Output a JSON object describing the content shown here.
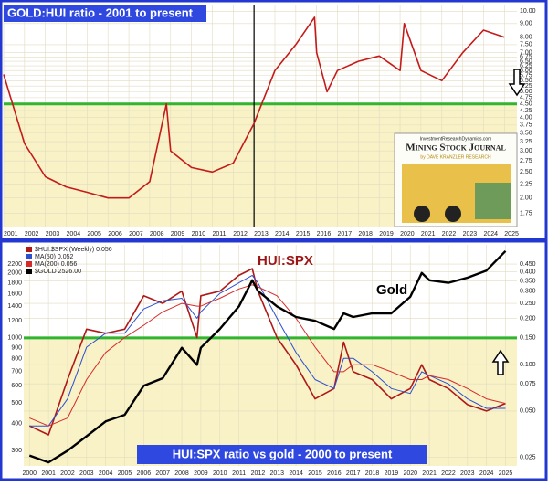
{
  "chart_data": [
    {
      "type": "line",
      "title": "GOLD:HUI ratio - 2001 to present",
      "log": true,
      "x": [
        2001,
        2002,
        2003,
        2004,
        2005,
        2006,
        2007,
        2008,
        2008.8,
        2009,
        2010,
        2011,
        2012,
        2013,
        2014,
        2015,
        2015.9,
        2016,
        2016.5,
        2017,
        2018,
        2019,
        2020,
        2020.2,
        2021,
        2022,
        2023,
        2024,
        2025
      ],
      "series": [
        {
          "color": "#c41a1a",
          "values": [
            5.8,
            3.2,
            2.4,
            2.2,
            2.1,
            2.0,
            2.0,
            2.3,
            4.5,
            3.0,
            2.6,
            2.5,
            2.7,
            3.8,
            6.0,
            7.5,
            9.5,
            7.0,
            5.0,
            6.0,
            6.5,
            6.8,
            6.0,
            9.0,
            6.0,
            5.5,
            7.0,
            8.5,
            8.0
          ]
        }
      ],
      "xlim": [
        2001,
        2025.6
      ],
      "xticks": [
        2001,
        2002,
        2003,
        2004,
        2005,
        2006,
        2007,
        2008,
        2009,
        2010,
        2011,
        2012,
        2013,
        2014,
        2015,
        2016,
        2017,
        2018,
        2019,
        2020,
        2021,
        2022,
        2023,
        2024,
        2025
      ],
      "ylim": [
        1.55,
        10.6
      ],
      "yticks": [
        1.75,
        {
          "value": 2,
          "label": "2.00"
        },
        2.25,
        {
          "value": 2.5,
          "label": "2.50"
        },
        2.75,
        {
          "value": 3,
          "label": "3.00"
        },
        3.25,
        {
          "value": 3.5,
          "label": "3.50"
        },
        3.75,
        {
          "value": 4,
          "label": "4.00"
        },
        4.25,
        {
          "value": 4.5,
          "label": "4.50"
        },
        4.75,
        {
          "value": 5,
          "label": "5.00"
        },
        5.25,
        {
          "value": 5.5,
          "label": "5.50"
        },
        5.75,
        {
          "value": 6,
          "label": "6.00"
        },
        6.25,
        {
          "value": 6.5,
          "label": "6.50"
        },
        6.75,
        {
          "value": 7,
          "label": "7.00"
        },
        {
          "value": 7.5,
          "label": "7.50"
        },
        {
          "value": 8,
          "label": "8.00"
        },
        {
          "value": 9,
          "label": "9.00"
        },
        {
          "value": 10,
          "label": "10.00"
        }
      ],
      "hline": 4.5,
      "hline_color": "#2fb52f",
      "vline": 2013
    },
    {
      "type": "line",
      "title": "HUI:SPX ratio vs gold - 2000 to present",
      "log": true,
      "x": [
        2000,
        2001,
        2002,
        2003,
        2004,
        2005,
        2006,
        2007,
        2008,
        2008.8,
        2009,
        2010,
        2011,
        2011.7,
        2012,
        2013,
        2014,
        2015,
        2016,
        2016.5,
        2017,
        2018,
        2019,
        2020,
        2020.6,
        2021,
        2022,
        2023,
        2024,
        2025
      ],
      "series": [
        {
          "name": "$HUI:$SPX (Weekly) 0.056",
          "color": "#b01818",
          "axis": "y2",
          "values": [
            0.04,
            0.035,
            0.08,
            0.17,
            0.16,
            0.17,
            0.28,
            0.25,
            0.3,
            0.15,
            0.28,
            0.3,
            0.38,
            0.42,
            0.3,
            0.15,
            0.1,
            0.06,
            0.07,
            0.14,
            0.09,
            0.08,
            0.06,
            0.07,
            0.1,
            0.08,
            0.07,
            0.055,
            0.05,
            0.056
          ]
        },
        {
          "name": "MA(50) 0.052",
          "color": "#2a4fd0",
          "axis": "y2",
          "values": [
            0.04,
            0.04,
            0.06,
            0.13,
            0.16,
            0.16,
            0.23,
            0.26,
            0.27,
            0.2,
            0.22,
            0.29,
            0.34,
            0.38,
            0.34,
            0.2,
            0.12,
            0.08,
            0.07,
            0.11,
            0.11,
            0.09,
            0.07,
            0.065,
            0.09,
            0.085,
            0.075,
            0.06,
            0.052,
            0.052
          ]
        },
        {
          "name": "MA(200) 0.056",
          "color": "#d62a2a",
          "axis": "y2",
          "values": [
            0.045,
            0.04,
            0.045,
            0.08,
            0.12,
            0.15,
            0.18,
            0.22,
            0.25,
            0.24,
            0.24,
            0.27,
            0.31,
            0.33,
            0.32,
            0.28,
            0.2,
            0.13,
            0.09,
            0.09,
            0.1,
            0.1,
            0.09,
            0.08,
            0.08,
            0.085,
            0.08,
            0.07,
            0.06,
            0.056
          ]
        },
        {
          "name": "$GOLD 2526.00",
          "color": "#000000",
          "values": [
            285,
            265,
            300,
            350,
            410,
            440,
            600,
            650,
            900,
            750,
            900,
            1100,
            1400,
            1850,
            1650,
            1400,
            1250,
            1200,
            1100,
            1300,
            1250,
            1300,
            1300,
            1550,
            2000,
            1850,
            1800,
            1900,
            2050,
            2526
          ]
        }
      ],
      "annotations": [
        "HUI:SPX",
        "Gold"
      ],
      "xlim": [
        1999.7,
        2025.6
      ],
      "xticks": [
        2000,
        2001,
        2002,
        2003,
        2004,
        2005,
        2006,
        2007,
        2008,
        2009,
        2010,
        2011,
        2012,
        2013,
        2014,
        2015,
        2016,
        2017,
        2018,
        2019,
        2020,
        2021,
        2022,
        2023,
        2024,
        2025
      ],
      "ylim": [
        255,
        2700
      ],
      "yticks": [
        300,
        400,
        500,
        600,
        700,
        800,
        900,
        1000,
        1200,
        1400,
        1600,
        1800,
        2000,
        2200
      ],
      "y2lim": [
        0.022,
        0.6
      ],
      "y2ticks": [
        0.025,
        {
          "value": 0.05,
          "label": "0.050"
        },
        0.075,
        {
          "value": 0.1,
          "label": "0.100"
        },
        {
          "value": 0.15,
          "label": "0.150"
        },
        {
          "value": 0.2,
          "label": "0.200"
        },
        {
          "value": 0.25,
          "label": "0.250"
        },
        {
          "value": 0.3,
          "label": "0.300"
        },
        {
          "value": 0.35,
          "label": "0.350"
        },
        {
          "value": 0.4,
          "label": "0.400"
        },
        {
          "value": 0.45,
          "label": "0.450"
        }
      ],
      "hline": 1000,
      "hline_color": "#2fb52f"
    }
  ],
  "ad": {
    "url": "InvestmentResearchDynamics.com",
    "title": "Mining Stock Journal",
    "byline": "by DAVE KRANZLER RESEARCH"
  }
}
